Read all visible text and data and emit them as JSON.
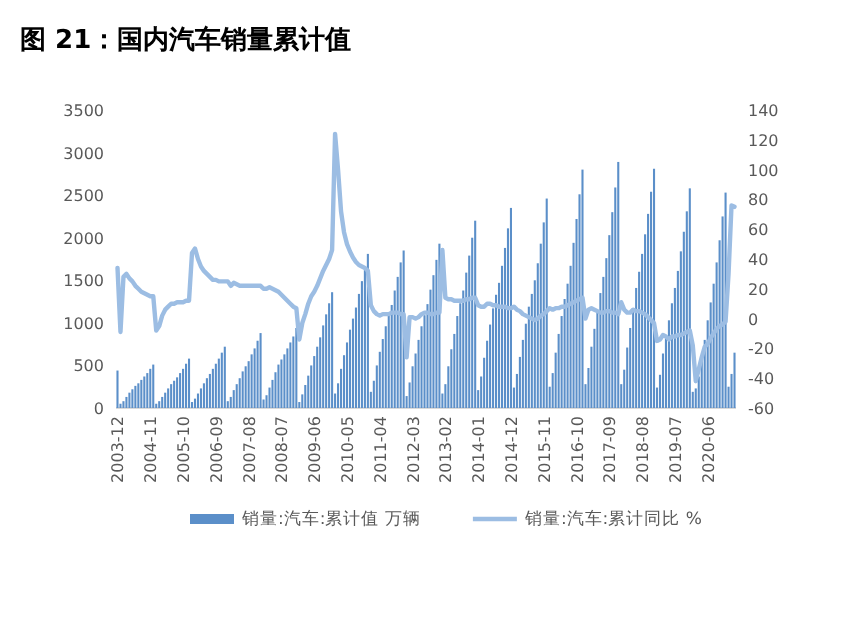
{
  "chart_data": {
    "type": "bar",
    "title": "图 21：国内汽车销量累计值",
    "categories": [
      "2003-12",
      null,
      null,
      null,
      null,
      null,
      null,
      null,
      null,
      null,
      null,
      "2004-11",
      null,
      null,
      null,
      null,
      null,
      null,
      null,
      null,
      null,
      null,
      "2005-10",
      null,
      null,
      null,
      null,
      null,
      null,
      null,
      null,
      null,
      null,
      "2006-09",
      null,
      null,
      null,
      null,
      null,
      null,
      null,
      null,
      null,
      null,
      "2007-08",
      null,
      null,
      null,
      null,
      null,
      null,
      null,
      null,
      null,
      null,
      "2008-07",
      null,
      null,
      null,
      null,
      null,
      null,
      null,
      null,
      null,
      null,
      "2009-06",
      null,
      null,
      null,
      null,
      null,
      null,
      null,
      null,
      null,
      null,
      "2010-05",
      null,
      null,
      null,
      null,
      null,
      null,
      null,
      null,
      null,
      null,
      "2011-04",
      null,
      null,
      null,
      null,
      null,
      null,
      null,
      null,
      null,
      null,
      "2012-03",
      null,
      null,
      null,
      null,
      null,
      null,
      null,
      null,
      null,
      null,
      "2013-02",
      null,
      null,
      null,
      null,
      null,
      null,
      null,
      null,
      null,
      null,
      "2014-01",
      null,
      null,
      null,
      null,
      null,
      null,
      null,
      null,
      null,
      null,
      "2014-12",
      null,
      null,
      null,
      null,
      null,
      null,
      null,
      null,
      null,
      null,
      "2015-11",
      null,
      null,
      null,
      null,
      null,
      null,
      null,
      null,
      null,
      null,
      "2016-10",
      null,
      null,
      null,
      null,
      null,
      null,
      null,
      null,
      null,
      null,
      "2017-09",
      null,
      null,
      null,
      null,
      null,
      null,
      null,
      null,
      null,
      null,
      "2018-08",
      null,
      null,
      null,
      null,
      null,
      null,
      null,
      null,
      null,
      null,
      "2019-07",
      null,
      null,
      null,
      null,
      null,
      null,
      null,
      null,
      null,
      null,
      "2020-06",
      null,
      null,
      null,
      null,
      null,
      null,
      null,
      null,
      null
    ],
    "series": [
      {
        "name": "销量:汽车:累计值 万辆",
        "color": "#5b8fc9",
        "values": [
          440,
          50,
          80,
          130,
          180,
          220,
          260,
          290,
          330,
          370,
          410,
          460,
          510,
          50,
          80,
          130,
          180,
          230,
          280,
          320,
          360,
          410,
          460,
          520,
          580,
          70,
          110,
          170,
          230,
          290,
          350,
          400,
          460,
          520,
          580,
          650,
          720,
          80,
          130,
          210,
          280,
          350,
          430,
          490,
          550,
          630,
          700,
          790,
          880,
          100,
          150,
          240,
          330,
          420,
          510,
          570,
          630,
          700,
          770,
          840,
          940,
          70,
          160,
          270,
          380,
          500,
          610,
          720,
          830,
          970,
          1100,
          1230,
          1360,
          170,
          290,
          460,
          620,
          770,
          920,
          1050,
          1180,
          1340,
          1490,
          1660,
          1810,
          190,
          320,
          500,
          660,
          810,
          960,
          1090,
          1210,
          1380,
          1540,
          1710,
          1850,
          140,
          300,
          490,
          640,
          800,
          960,
          1090,
          1220,
          1390,
          1560,
          1740,
          1930,
          170,
          280,
          490,
          690,
          870,
          1080,
          1230,
          1380,
          1590,
          1790,
          2000,
          2200,
          210,
          370,
          590,
          790,
          980,
          1170,
          1330,
          1470,
          1670,
          1880,
          2110,
          2350,
          240,
          400,
          600,
          800,
          990,
          1190,
          1340,
          1500,
          1700,
          1930,
          2180,
          2460,
          250,
          410,
          650,
          870,
          1080,
          1280,
          1460,
          1670,
          1940,
          2220,
          2510,
          2800,
          280,
          470,
          720,
          930,
          1140,
          1350,
          1540,
          1760,
          2030,
          2300,
          2590,
          2890,
          280,
          450,
          710,
          940,
          1170,
          1410,
          1600,
          1810,
          2040,
          2280,
          2540,
          2810,
          240,
          390,
          640,
          840,
          1030,
          1230,
          1410,
          1610,
          1840,
          2070,
          2310,
          2580,
          190,
          230,
          370,
          580,
          800,
          1030,
          1240,
          1460,
          1710,
          1970,
          2250,
          2530,
          250,
          400,
          650
        ]
      },
      {
        "name": "销量:汽车:累计同比 %",
        "type": "line",
        "axis": "y2",
        "color": "#9cbde3",
        "values": [
          34,
          -9,
          28,
          30,
          27,
          25,
          22,
          20,
          18,
          17,
          16,
          15,
          15,
          -8,
          -5,
          2,
          6,
          8,
          10,
          10,
          11,
          11,
          11,
          12,
          12,
          44,
          47,
          40,
          35,
          32,
          30,
          28,
          26,
          26,
          25,
          25,
          25,
          25,
          22,
          24,
          23,
          22,
          22,
          22,
          22,
          22,
          22,
          22,
          22,
          20,
          20,
          21,
          20,
          19,
          18,
          16,
          14,
          12,
          10,
          8,
          7,
          -14,
          -3,
          3,
          10,
          15,
          18,
          22,
          27,
          32,
          36,
          40,
          46,
          124,
          100,
          72,
          58,
          50,
          45,
          41,
          38,
          36,
          35,
          34,
          32,
          9,
          5,
          3,
          2,
          3,
          3,
          3,
          4,
          4,
          4,
          3,
          3,
          -26,
          1,
          1,
          0,
          1,
          3,
          4,
          4,
          3,
          3,
          4,
          4,
          46,
          14,
          13,
          13,
          12,
          12,
          12,
          12,
          13,
          13,
          14,
          14,
          9,
          8,
          8,
          10,
          10,
          9,
          9,
          8,
          8,
          8,
          7,
          7,
          8,
          6,
          5,
          3,
          2,
          1,
          0,
          -1,
          0,
          2,
          3,
          5,
          7,
          6,
          7,
          7,
          8,
          8,
          9,
          10,
          11,
          12,
          13,
          14,
          0,
          6,
          7,
          6,
          5,
          4,
          4,
          5,
          5,
          4,
          4,
          3,
          11,
          6,
          4,
          4,
          6,
          5,
          5,
          4,
          3,
          1,
          -1,
          -3,
          -15,
          -14,
          -11,
          -12,
          -14,
          -12,
          -12,
          -11,
          -11,
          -10,
          -9,
          -8,
          -18,
          -42,
          -34,
          -26,
          -19,
          -17,
          -13,
          -10,
          -7,
          -5,
          -4,
          -2,
          30,
          76,
          75
        ]
      }
    ],
    "ylim": [
      0,
      3500
    ],
    "yticks": [
      0,
      500,
      1000,
      1500,
      2000,
      2500,
      3000,
      3500
    ],
    "y2lim": [
      -60,
      140
    ],
    "y2ticks": [
      -60,
      -40,
      -20,
      0,
      20,
      40,
      60,
      80,
      100,
      120,
      140
    ],
    "legend": "bottom"
  }
}
